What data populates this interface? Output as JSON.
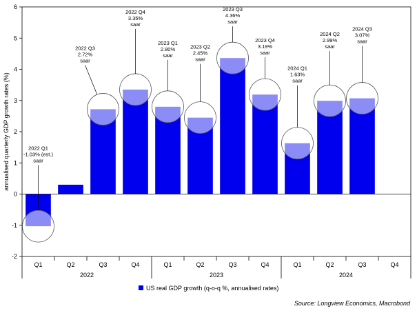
{
  "chart_data": {
    "type": "bar",
    "categories": [
      "Q1",
      "Q2",
      "Q3",
      "Q4",
      "Q1",
      "Q2",
      "Q3",
      "Q4",
      "Q1",
      "Q2",
      "Q3",
      "Q4"
    ],
    "year_labels": [
      {
        "label": "2022",
        "start_index": 0,
        "end_index": 3
      },
      {
        "label": "2023",
        "start_index": 4,
        "end_index": 7
      },
      {
        "label": "2024",
        "start_index": 8,
        "end_index": 11
      }
    ],
    "series": [
      {
        "name": "US real GDP growth (q-o-q %, annualised rates)",
        "color": "#0000ee",
        "values": [
          -1.03,
          0.3,
          2.72,
          3.35,
          2.8,
          2.45,
          4.36,
          3.19,
          1.63,
          2.99,
          3.07,
          null
        ]
      }
    ],
    "ylabel": "annualised quarterly GDP growth rates (%)",
    "xlabel": "",
    "ylim": [
      -2,
      6
    ],
    "yticks": [
      -2,
      -1,
      0,
      1,
      2,
      3,
      4,
      5,
      6
    ],
    "grid": false,
    "legend_position": "bottom-center",
    "annotations": [
      {
        "index": 0,
        "lines": [
          "2022 Q1",
          "-1.03% (est.)",
          "saar"
        ]
      },
      {
        "index": 2,
        "lines": [
          "2022 Q3",
          "2.72%",
          "saar"
        ]
      },
      {
        "index": 3,
        "lines": [
          "2022 Q4",
          "3.35%",
          "saar"
        ]
      },
      {
        "index": 4,
        "lines": [
          "2023 Q1",
          "2.80%",
          "saar"
        ]
      },
      {
        "index": 5,
        "lines": [
          "2023 Q2",
          "2.45%",
          "saar"
        ]
      },
      {
        "index": 6,
        "lines": [
          "2023 Q3",
          "4.36%",
          "saar"
        ]
      },
      {
        "index": 7,
        "lines": [
          "2023 Q4",
          "3.19%",
          "saar"
        ]
      },
      {
        "index": 8,
        "lines": [
          "2024 Q1",
          "1.63%",
          "saar"
        ]
      },
      {
        "index": 9,
        "lines": [
          "2024 Q2",
          "2.99%",
          "saar"
        ]
      },
      {
        "index": 10,
        "lines": [
          "2024 Q3",
          "3.07%",
          "saar"
        ]
      }
    ]
  },
  "source": "Source: Longview Economics, Macrobond"
}
